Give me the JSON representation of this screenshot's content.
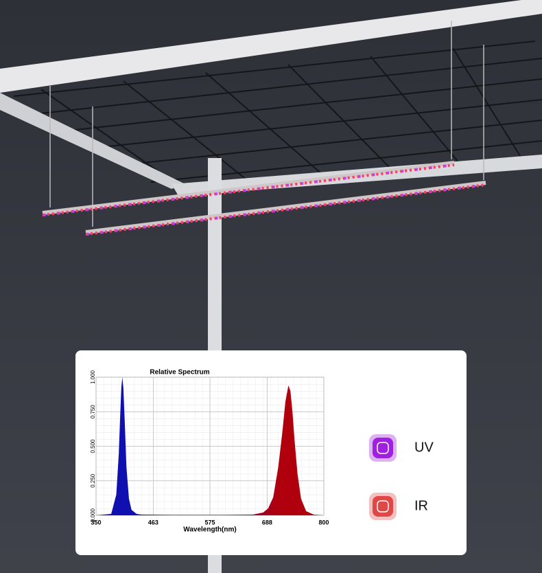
{
  "chart_data": {
    "type": "area",
    "title": "Relative Spectrum",
    "xlabel": "Wavelength(nm)",
    "x": [
      350,
      380,
      390,
      395,
      398,
      400,
      402,
      404,
      407,
      410,
      415,
      420,
      430,
      440,
      500,
      600,
      660,
      680,
      690,
      700,
      710,
      718,
      724,
      730,
      734,
      738,
      742,
      748,
      755,
      765,
      780,
      800
    ],
    "values": [
      0,
      0.01,
      0.15,
      0.45,
      0.75,
      0.93,
      1.0,
      0.92,
      0.65,
      0.35,
      0.12,
      0.04,
      0.01,
      0.005,
      0.003,
      0.003,
      0.005,
      0.02,
      0.05,
      0.13,
      0.35,
      0.6,
      0.82,
      0.94,
      0.9,
      0.75,
      0.55,
      0.3,
      0.12,
      0.03,
      0.005,
      0
    ],
    "colors": [
      "#1010b0",
      "#b0000e"
    ],
    "xlim": [
      350,
      800
    ],
    "xticks": [
      350,
      463,
      575,
      688,
      800
    ],
    "ylim": [
      0,
      1
    ],
    "yticks": [
      {
        "value": 0,
        "label": "0.000"
      },
      {
        "value": 0.25,
        "label": "0.250"
      },
      {
        "value": 0.5,
        "label": "0.500"
      },
      {
        "value": 0.75,
        "label": "0.750"
      },
      {
        "value": 1,
        "label": "1.000"
      }
    ],
    "grid": true
  },
  "badges": [
    {
      "label": "UV",
      "color": "#a020e0"
    },
    {
      "label": "IR",
      "color": "#e04848"
    }
  ]
}
